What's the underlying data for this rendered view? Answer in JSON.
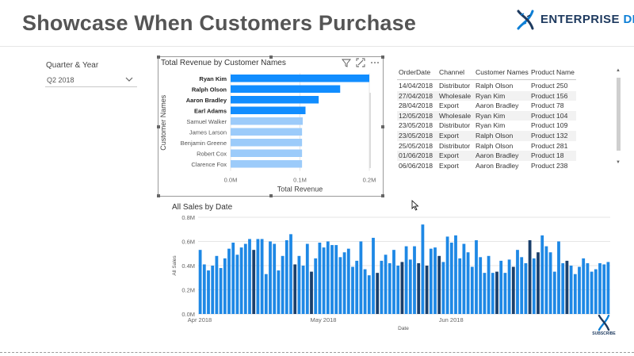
{
  "header": {
    "title": "Showcase When Customers Purchase",
    "logo": {
      "word1": "ENTERPRISE",
      "word2": "DNA",
      "icon": "dna-icon"
    }
  },
  "slicer": {
    "label": "Quarter & Year",
    "value": "Q2 2018",
    "icon": "chevron-down-icon"
  },
  "revenue_visual": {
    "title": "Total Revenue by Customer Names",
    "icons": [
      "filter-icon",
      "focus-mode-icon",
      "more-options-icon"
    ]
  },
  "table": {
    "headers": [
      "OrderDate",
      "Channel",
      "Customer Names",
      "Product Name"
    ],
    "rows": [
      [
        "14/04/2018",
        "Distributor",
        "Ralph Olson",
        "Product 250"
      ],
      [
        "27/04/2018",
        "Wholesale",
        "Ryan Kim",
        "Product 156"
      ],
      [
        "28/04/2018",
        "Export",
        "Aaron Bradley",
        "Product 78"
      ],
      [
        "12/05/2018",
        "Wholesale",
        "Ryan Kim",
        "Product 104"
      ],
      [
        "23/05/2018",
        "Distributor",
        "Ryan Kim",
        "Product 109"
      ],
      [
        "23/05/2018",
        "Export",
        "Ralph Olson",
        "Product 132"
      ],
      [
        "25/05/2018",
        "Distributor",
        "Ralph Olson",
        "Product 281"
      ],
      [
        "01/06/2018",
        "Export",
        "Aaron Bradley",
        "Product 18"
      ],
      [
        "06/06/2018",
        "Export",
        "Aaron Bradley",
        "Product 238"
      ]
    ]
  },
  "sales_visual": {
    "title": "All Sales by Date"
  },
  "subscribe": {
    "label": "SUBSCRIBE"
  },
  "colors": {
    "selected": "#118dff",
    "unselected": "#9ccbfa",
    "highlight": "#1a3f6b",
    "sales_bar": "#1e88e5"
  },
  "chart_data": [
    {
      "type": "bar",
      "orientation": "horizontal",
      "title": "",
      "xlabel": "Total Revenue",
      "ylabel": "Customer Names",
      "categories": [
        "Ryan Kim",
        "Ralph Olson",
        "Aaron Bradley",
        "Earl Adams",
        "Samuel Walker",
        "James Larson",
        "Benjamin Greene",
        "Robert Cox",
        "Clarence Fox"
      ],
      "values": [
        0.2,
        0.158,
        0.127,
        0.108,
        0.104,
        0.103,
        0.103,
        0.103,
        0.103
      ],
      "selected": [
        true,
        true,
        true,
        true,
        false,
        false,
        false,
        false,
        false
      ],
      "xlim": [
        0,
        0.2
      ],
      "xticks": [
        "0.0M",
        "0.1M",
        "0.2M"
      ],
      "grid": true,
      "legend": "none"
    },
    {
      "type": "bar",
      "title": "",
      "xlabel": "Date",
      "ylabel": "All Sales",
      "ylim": [
        0,
        0.8
      ],
      "yticks": [
        "0.0M",
        "0.2M",
        "0.4M",
        "0.6M",
        "0.8M"
      ],
      "xticks": [
        "Apr 2018",
        "May 2018",
        "Jun 2018"
      ],
      "x_start": "2018-04-01",
      "grid": true,
      "legend": "none",
      "values": [
        0.53,
        0.41,
        0.36,
        0.4,
        0.48,
        0.38,
        0.46,
        0.54,
        0.59,
        0.49,
        0.55,
        0.58,
        0.62,
        0.53,
        0.62,
        0.62,
        0.33,
        0.6,
        0.58,
        0.36,
        0.48,
        0.61,
        0.66,
        0.41,
        0.48,
        0.4,
        0.58,
        0.35,
        0.46,
        0.59,
        0.55,
        0.6,
        0.57,
        0.57,
        0.47,
        0.51,
        0.54,
        0.39,
        0.44,
        0.6,
        0.37,
        0.32,
        0.63,
        0.34,
        0.44,
        0.49,
        0.42,
        0.53,
        0.4,
        0.43,
        0.56,
        0.45,
        0.56,
        0.42,
        0.74,
        0.4,
        0.54,
        0.55,
        0.48,
        0.43,
        0.64,
        0.59,
        0.65,
        0.46,
        0.58,
        0.51,
        0.39,
        0.61,
        0.47,
        0.34,
        0.48,
        0.34,
        0.35,
        0.44,
        0.34,
        0.45,
        0.39,
        0.53,
        0.47,
        0.42,
        0.61,
        0.46,
        0.51,
        0.65,
        0.56,
        0.51,
        0.35,
        0.6,
        0.42,
        0.44,
        0.4,
        0.33,
        0.39,
        0.46,
        0.42,
        0.35,
        0.37,
        0.42,
        0.41,
        0.43
      ],
      "highlighted_days": [
        13,
        23,
        27,
        43,
        49,
        53,
        55,
        58,
        72,
        76,
        80,
        82,
        89
      ]
    }
  ]
}
